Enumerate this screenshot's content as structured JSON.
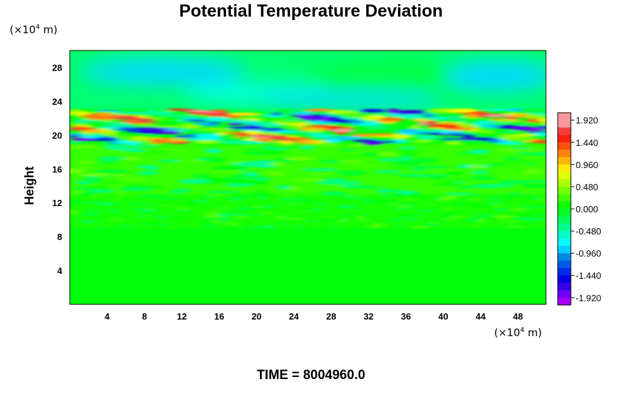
{
  "chart_data": {
    "type": "heatmap",
    "title": "Potential Temperature Deviation",
    "ylabel": "Height",
    "y_unit": {
      "prefix": "(×10",
      "exp": "4",
      "suffix": " m)"
    },
    "x_unit": {
      "prefix": "(×10",
      "exp": "4",
      "suffix": " m)"
    },
    "xlim": [
      0,
      51
    ],
    "ylim": [
      0,
      30
    ],
    "x_ticks": [
      "4",
      "8",
      "12",
      "16",
      "20",
      "24",
      "28",
      "32",
      "36",
      "40",
      "44",
      "48"
    ],
    "y_ticks": [
      "4",
      "8",
      "12",
      "16",
      "20",
      "24",
      "28"
    ],
    "colorbar": {
      "min": -2.08,
      "max": 2.08,
      "step": 0.16,
      "labels": [
        "1.920",
        "1.440",
        "0.960",
        "0.480",
        "0.000",
        "-0.480",
        "-0.960",
        "-1.440",
        "-1.920"
      ]
    },
    "field_summary": [
      {
        "height_range": [
          0,
          9
        ],
        "deviation": 0.0
      },
      {
        "height_range": [
          9,
          13
        ],
        "deviation": 0.1
      },
      {
        "height_range": [
          13,
          19
        ],
        "deviation": 0.2
      },
      {
        "height_range": [
          19,
          23
        ],
        "deviation_min": -1.9,
        "deviation_max": 1.9
      },
      {
        "height_range": [
          23,
          30
        ],
        "deviation": -0.3
      }
    ],
    "time_label": "TIME = 8004960.0"
  }
}
